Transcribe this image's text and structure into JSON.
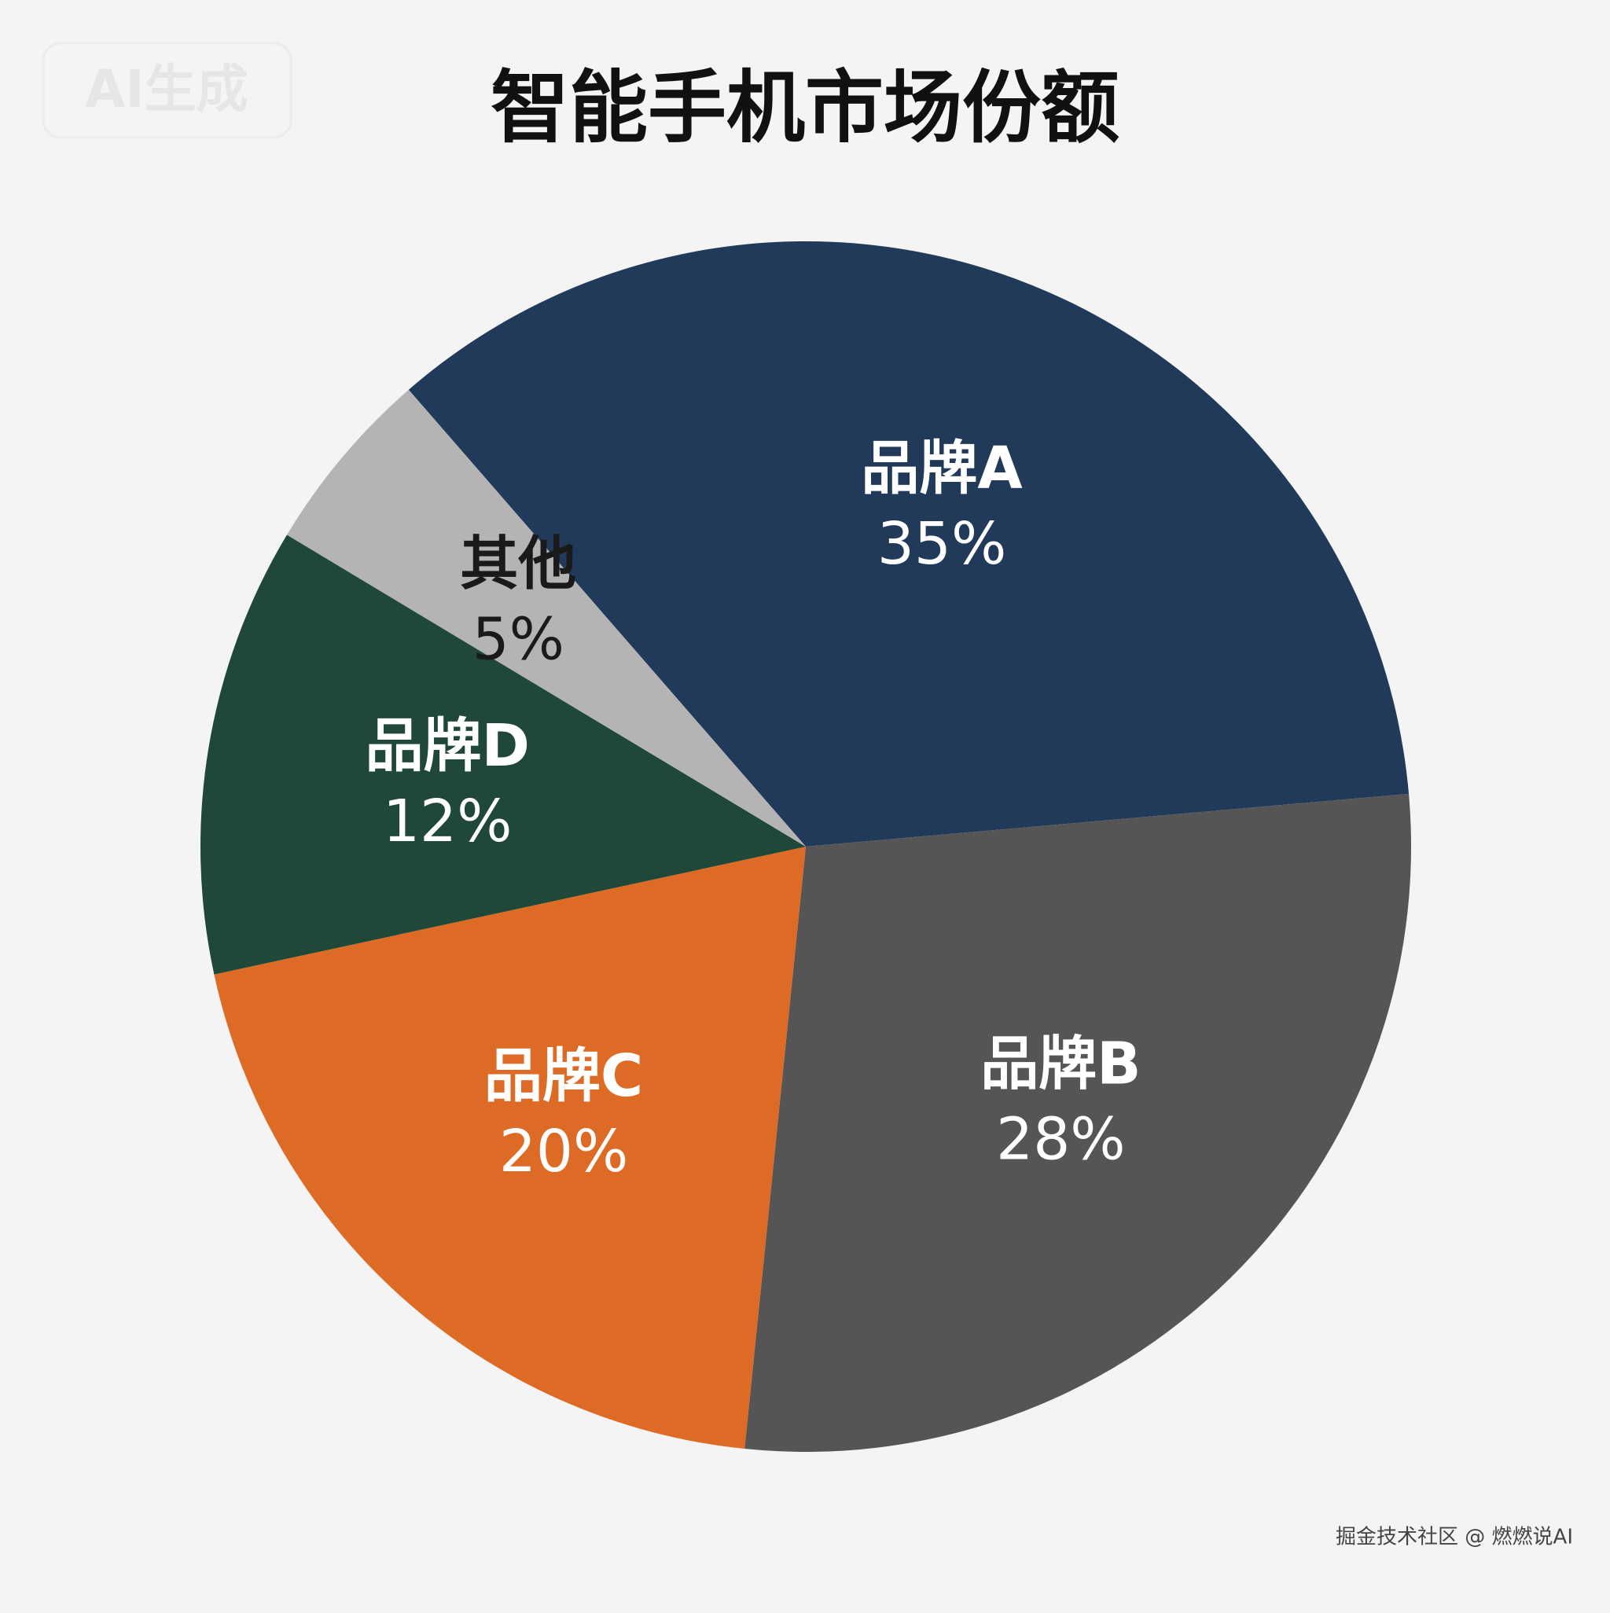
{
  "chart_data": {
    "type": "pie",
    "title": "智能手机市场份额",
    "categories": [
      "品牌A",
      "品牌B",
      "品牌C",
      "品牌D",
      "其他"
    ],
    "values": [
      35,
      28,
      20,
      12,
      5
    ],
    "value_labels": [
      "35%",
      "28%",
      "20%",
      "12%",
      "5%"
    ],
    "colors": [
      "#213a5a",
      "#555555",
      "#de6b25",
      "#1f4838",
      "#b4b4b4"
    ]
  },
  "watermarks": [
    "AI生成",
    "掘金技术社区 @ 燃燃说AI"
  ]
}
